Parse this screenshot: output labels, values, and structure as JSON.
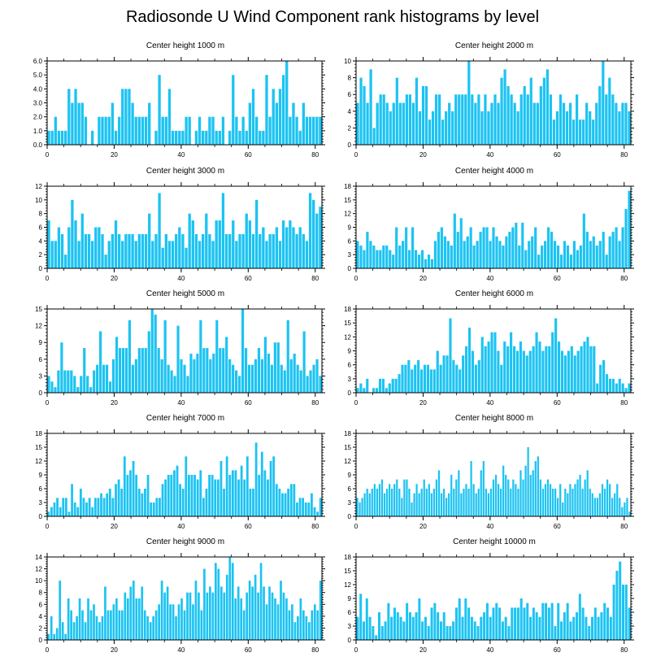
{
  "page": {
    "title": "Radiosonde U Wind Component rank histograms by level"
  },
  "chart_data": [
    {
      "type": "bar",
      "title": "Center height 1000 m",
      "xlim": [
        0,
        82
      ],
      "ylim": [
        0,
        6
      ],
      "xticks": [
        0,
        20,
        40,
        60,
        80
      ],
      "yticks": [
        "0.0",
        "1.0",
        "2.0",
        "3.0",
        "4.0",
        "5.0",
        "6.0"
      ],
      "bar_color": "#1cc3f2",
      "values": [
        1,
        1,
        2,
        1,
        1,
        1,
        4,
        3,
        4,
        3,
        3,
        2,
        0,
        1,
        0,
        2,
        2,
        2,
        2,
        3,
        1,
        2,
        4,
        4,
        4,
        3,
        2,
        2,
        2,
        2,
        3,
        0,
        1,
        5,
        2,
        2,
        4,
        1,
        1,
        1,
        1,
        2,
        2,
        0,
        1,
        2,
        1,
        1,
        2,
        2,
        1,
        1,
        2,
        0,
        1,
        5,
        2,
        1,
        2,
        1,
        3,
        4,
        2,
        1,
        1,
        5,
        2,
        4,
        3,
        4,
        5,
        6,
        2,
        3,
        2,
        1,
        3,
        2,
        2,
        2,
        2,
        2
      ]
    },
    {
      "type": "bar",
      "title": "Center height 2000 m",
      "xlim": [
        0,
        82
      ],
      "ylim": [
        0,
        10
      ],
      "xticks": [
        0,
        20,
        40,
        60,
        80
      ],
      "yticks": [
        "0",
        "2",
        "4",
        "6",
        "8",
        "10"
      ],
      "bar_color": "#1cc3f2",
      "values": [
        5,
        8,
        7,
        5,
        9,
        2,
        5,
        6,
        6,
        5,
        4,
        5,
        8,
        5,
        5,
        6,
        6,
        5,
        8,
        4,
        7,
        7,
        3,
        4,
        6,
        6,
        3,
        4,
        5,
        4,
        6,
        6,
        6,
        6,
        10,
        6,
        5,
        6,
        4,
        6,
        4,
        5,
        6,
        5,
        8,
        9,
        7,
        6,
        5,
        4,
        6,
        7,
        6,
        8,
        5,
        5,
        7,
        8,
        9,
        6,
        3,
        4,
        6,
        5,
        4,
        5,
        3,
        6,
        3,
        3,
        5,
        4,
        3,
        5,
        7,
        10,
        6,
        8,
        6,
        5,
        4,
        5,
        5,
        4
      ]
    },
    {
      "type": "bar",
      "title": "Center height 3000 m",
      "xlim": [
        0,
        82
      ],
      "ylim": [
        0,
        12
      ],
      "xticks": [
        0,
        20,
        40,
        60,
        80
      ],
      "yticks": [
        "0",
        "2",
        "4",
        "6",
        "8",
        "10",
        "12"
      ],
      "bar_color": "#1cc3f2",
      "values": [
        7,
        4,
        4,
        6,
        5,
        2,
        6,
        10,
        7,
        4,
        8,
        5,
        5,
        4,
        6,
        6,
        5,
        2,
        4,
        5,
        7,
        5,
        4,
        5,
        5,
        5,
        4,
        5,
        5,
        5,
        8,
        4,
        5,
        11,
        3,
        5,
        4,
        4,
        5,
        6,
        5,
        3,
        8,
        7,
        5,
        4,
        5,
        8,
        5,
        4,
        7,
        7,
        11,
        5,
        5,
        7,
        4,
        5,
        5,
        8,
        7,
        5,
        10,
        5,
        6,
        4,
        5,
        5,
        6,
        4,
        7,
        6,
        7,
        6,
        5,
        6,
        5,
        4,
        11,
        10,
        8,
        9
      ]
    },
    {
      "type": "bar",
      "title": "Center height 4000 m",
      "xlim": [
        0,
        82
      ],
      "ylim": [
        0,
        18
      ],
      "xticks": [
        0,
        20,
        40,
        60,
        80
      ],
      "yticks": [
        "0",
        "3",
        "6",
        "9",
        "12",
        "15",
        "18"
      ],
      "bar_color": "#1cc3f2",
      "values": [
        6,
        5,
        4,
        8,
        6,
        5,
        4,
        4,
        5,
        5,
        4,
        3,
        9,
        5,
        6,
        9,
        4,
        9,
        4,
        3,
        4,
        2,
        3,
        2,
        6,
        8,
        9,
        7,
        6,
        5,
        12,
        8,
        11,
        6,
        7,
        9,
        5,
        6,
        8,
        9,
        9,
        6,
        9,
        7,
        6,
        5,
        7,
        8,
        9,
        10,
        5,
        10,
        4,
        6,
        7,
        9,
        3,
        5,
        6,
        9,
        8,
        6,
        5,
        3,
        6,
        5,
        3,
        6,
        4,
        5,
        12,
        8,
        6,
        7,
        5,
        6,
        8,
        3,
        7,
        8,
        9,
        6,
        9,
        13,
        17
      ]
    },
    {
      "type": "bar",
      "title": "Center height 5000 m",
      "xlim": [
        0,
        82
      ],
      "ylim": [
        0,
        15
      ],
      "xticks": [
        0,
        20,
        40,
        60,
        80
      ],
      "yticks": [
        "0",
        "3",
        "6",
        "9",
        "12",
        "15"
      ],
      "bar_color": "#1cc3f2",
      "values": [
        3,
        2,
        1,
        4,
        9,
        4,
        4,
        4,
        3,
        1,
        3,
        8,
        3,
        1,
        4,
        5,
        11,
        5,
        5,
        2,
        6,
        10,
        8,
        8,
        8,
        13,
        5,
        6,
        8,
        8,
        8,
        11,
        15,
        14,
        8,
        6,
        13,
        5,
        4,
        3,
        12,
        6,
        5,
        3,
        7,
        6,
        7,
        13,
        8,
        8,
        6,
        7,
        13,
        8,
        8,
        10,
        6,
        5,
        4,
        3,
        15,
        8,
        5,
        5,
        6,
        8,
        6,
        10,
        7,
        5,
        9,
        9,
        5,
        4,
        13,
        6,
        7,
        5,
        4,
        11,
        3,
        4,
        5,
        6,
        3
      ]
    },
    {
      "type": "bar",
      "title": "Center height 6000 m",
      "xlim": [
        0,
        82
      ],
      "ylim": [
        0,
        18
      ],
      "xticks": [
        0,
        20,
        40,
        60,
        80
      ],
      "yticks": [
        "0",
        "3",
        "6",
        "9",
        "12",
        "15",
        "18"
      ],
      "bar_color": "#1cc3f2",
      "values": [
        1,
        2,
        1,
        3,
        0,
        1,
        1,
        3,
        3,
        1,
        2,
        3,
        3,
        4,
        6,
        6,
        7,
        5,
        6,
        7,
        5,
        6,
        6,
        5,
        5,
        9,
        6,
        8,
        8,
        16,
        7,
        6,
        5,
        8,
        10,
        14,
        9,
        6,
        7,
        12,
        10,
        11,
        13,
        13,
        9,
        6,
        11,
        10,
        13,
        10,
        9,
        11,
        9,
        8,
        9,
        10,
        13,
        11,
        9,
        10,
        10,
        13,
        16,
        11,
        9,
        8,
        9,
        10,
        8,
        9,
        10,
        11,
        12,
        10,
        10,
        2,
        6,
        7,
        4,
        3,
        3,
        2,
        3,
        2,
        1,
        2
      ]
    },
    {
      "type": "bar",
      "title": "Center height 7000 m",
      "xlim": [
        0,
        82
      ],
      "ylim": [
        0,
        18
      ],
      "xticks": [
        0,
        20,
        40,
        60,
        80
      ],
      "yticks": [
        "0",
        "3",
        "6",
        "9",
        "12",
        "15",
        "18"
      ],
      "bar_color": "#1cc3f2",
      "values": [
        1,
        2,
        3,
        4,
        2,
        4,
        4,
        1,
        7,
        3,
        2,
        6,
        4,
        3,
        4,
        2,
        4,
        4,
        5,
        4,
        5,
        6,
        4,
        7,
        8,
        6,
        13,
        9,
        10,
        12,
        9,
        6,
        5,
        6,
        9,
        3,
        3,
        4,
        4,
        7,
        8,
        9,
        9,
        10,
        11,
        7,
        6,
        13,
        9,
        9,
        9,
        8,
        10,
        4,
        6,
        9,
        9,
        8,
        8,
        12,
        6,
        13,
        9,
        10,
        10,
        8,
        11,
        8,
        13,
        6,
        6,
        16,
        9,
        14,
        10,
        8,
        12,
        13,
        7,
        6,
        5,
        5,
        6,
        7,
        7,
        3,
        4,
        4,
        3,
        3,
        5,
        2,
        1,
        4
      ]
    },
    {
      "type": "bar",
      "title": "Center height 8000 m",
      "xlim": [
        0,
        82
      ],
      "ylim": [
        0,
        18
      ],
      "xticks": [
        0,
        20,
        40,
        60,
        80
      ],
      "yticks": [
        "0",
        "3",
        "6",
        "9",
        "12",
        "15",
        "18"
      ],
      "bar_color": "#1cc3f2",
      "values": [
        4,
        3,
        4,
        5,
        6,
        5,
        6,
        7,
        6,
        7,
        8,
        5,
        6,
        7,
        6,
        7,
        8,
        6,
        4,
        8,
        8,
        6,
        3,
        5,
        7,
        5,
        6,
        8,
        6,
        7,
        5,
        6,
        8,
        10,
        5,
        6,
        4,
        5,
        9,
        6,
        8,
        10,
        5,
        6,
        7,
        6,
        12,
        7,
        5,
        6,
        10,
        12,
        6,
        5,
        6,
        8,
        9,
        7,
        6,
        11,
        9,
        8,
        6,
        8,
        7,
        6,
        10,
        8,
        11,
        15,
        9,
        10,
        12,
        13,
        8,
        6,
        7,
        8,
        7,
        6,
        6,
        4,
        7,
        3,
        6,
        5,
        7,
        6,
        7,
        8,
        9,
        6,
        8,
        10,
        6,
        5,
        4,
        4,
        5,
        7,
        6,
        8,
        7,
        4,
        5,
        7,
        4,
        2,
        3,
        4,
        1
      ]
    },
    {
      "type": "bar",
      "title": "Center height 9000 m",
      "xlim": [
        0,
        82
      ],
      "ylim": [
        0,
        14
      ],
      "xticks": [
        0,
        20,
        40,
        60,
        80
      ],
      "yticks": [
        "0",
        "2",
        "4",
        "6",
        "8",
        "10",
        "12",
        "14"
      ],
      "bar_color": "#1cc3f2",
      "values": [
        1,
        4,
        1,
        2,
        10,
        3,
        1,
        7,
        5,
        3,
        4,
        7,
        5,
        3,
        7,
        5,
        6,
        4,
        3,
        4,
        9,
        5,
        5,
        6,
        7,
        5,
        5,
        8,
        7,
        9,
        10,
        7,
        7,
        9,
        5,
        4,
        3,
        4,
        5,
        6,
        10,
        8,
        9,
        6,
        6,
        4,
        6,
        7,
        5,
        8,
        8,
        6,
        10,
        8,
        5,
        12,
        8,
        9,
        8,
        13,
        12,
        9,
        8,
        11,
        14,
        13,
        7,
        9,
        7,
        5,
        8,
        10,
        9,
        11,
        8,
        13,
        9,
        6,
        9,
        8,
        7,
        6,
        10,
        8,
        7,
        5,
        6,
        3,
        4,
        7,
        5,
        4,
        3,
        5,
        6,
        5,
        10
      ]
    },
    {
      "type": "bar",
      "title": "Center height 10000 m",
      "xlim": [
        0,
        82
      ],
      "ylim": [
        0,
        18
      ],
      "xticks": [
        0,
        20,
        40,
        60,
        80
      ],
      "yticks": [
        "0",
        "3",
        "6",
        "9",
        "12",
        "15",
        "18"
      ],
      "bar_color": "#1cc3f2",
      "values": [
        5,
        10,
        4,
        9,
        5,
        3,
        1,
        6,
        3,
        4,
        8,
        5,
        7,
        6,
        5,
        4,
        8,
        6,
        5,
        6,
        9,
        4,
        5,
        3,
        7,
        8,
        6,
        4,
        6,
        3,
        3,
        4,
        7,
        9,
        5,
        9,
        7,
        5,
        4,
        3,
        5,
        6,
        8,
        5,
        7,
        8,
        7,
        4,
        5,
        3,
        7,
        7,
        7,
        9,
        7,
        8,
        5,
        7,
        6,
        5,
        8,
        8,
        7,
        8,
        3,
        8,
        4,
        6,
        8,
        4,
        5,
        6,
        10,
        7,
        5,
        3,
        5,
        7,
        5,
        6,
        8,
        7,
        5,
        12,
        15,
        17,
        12,
        12,
        7
      ]
    }
  ]
}
